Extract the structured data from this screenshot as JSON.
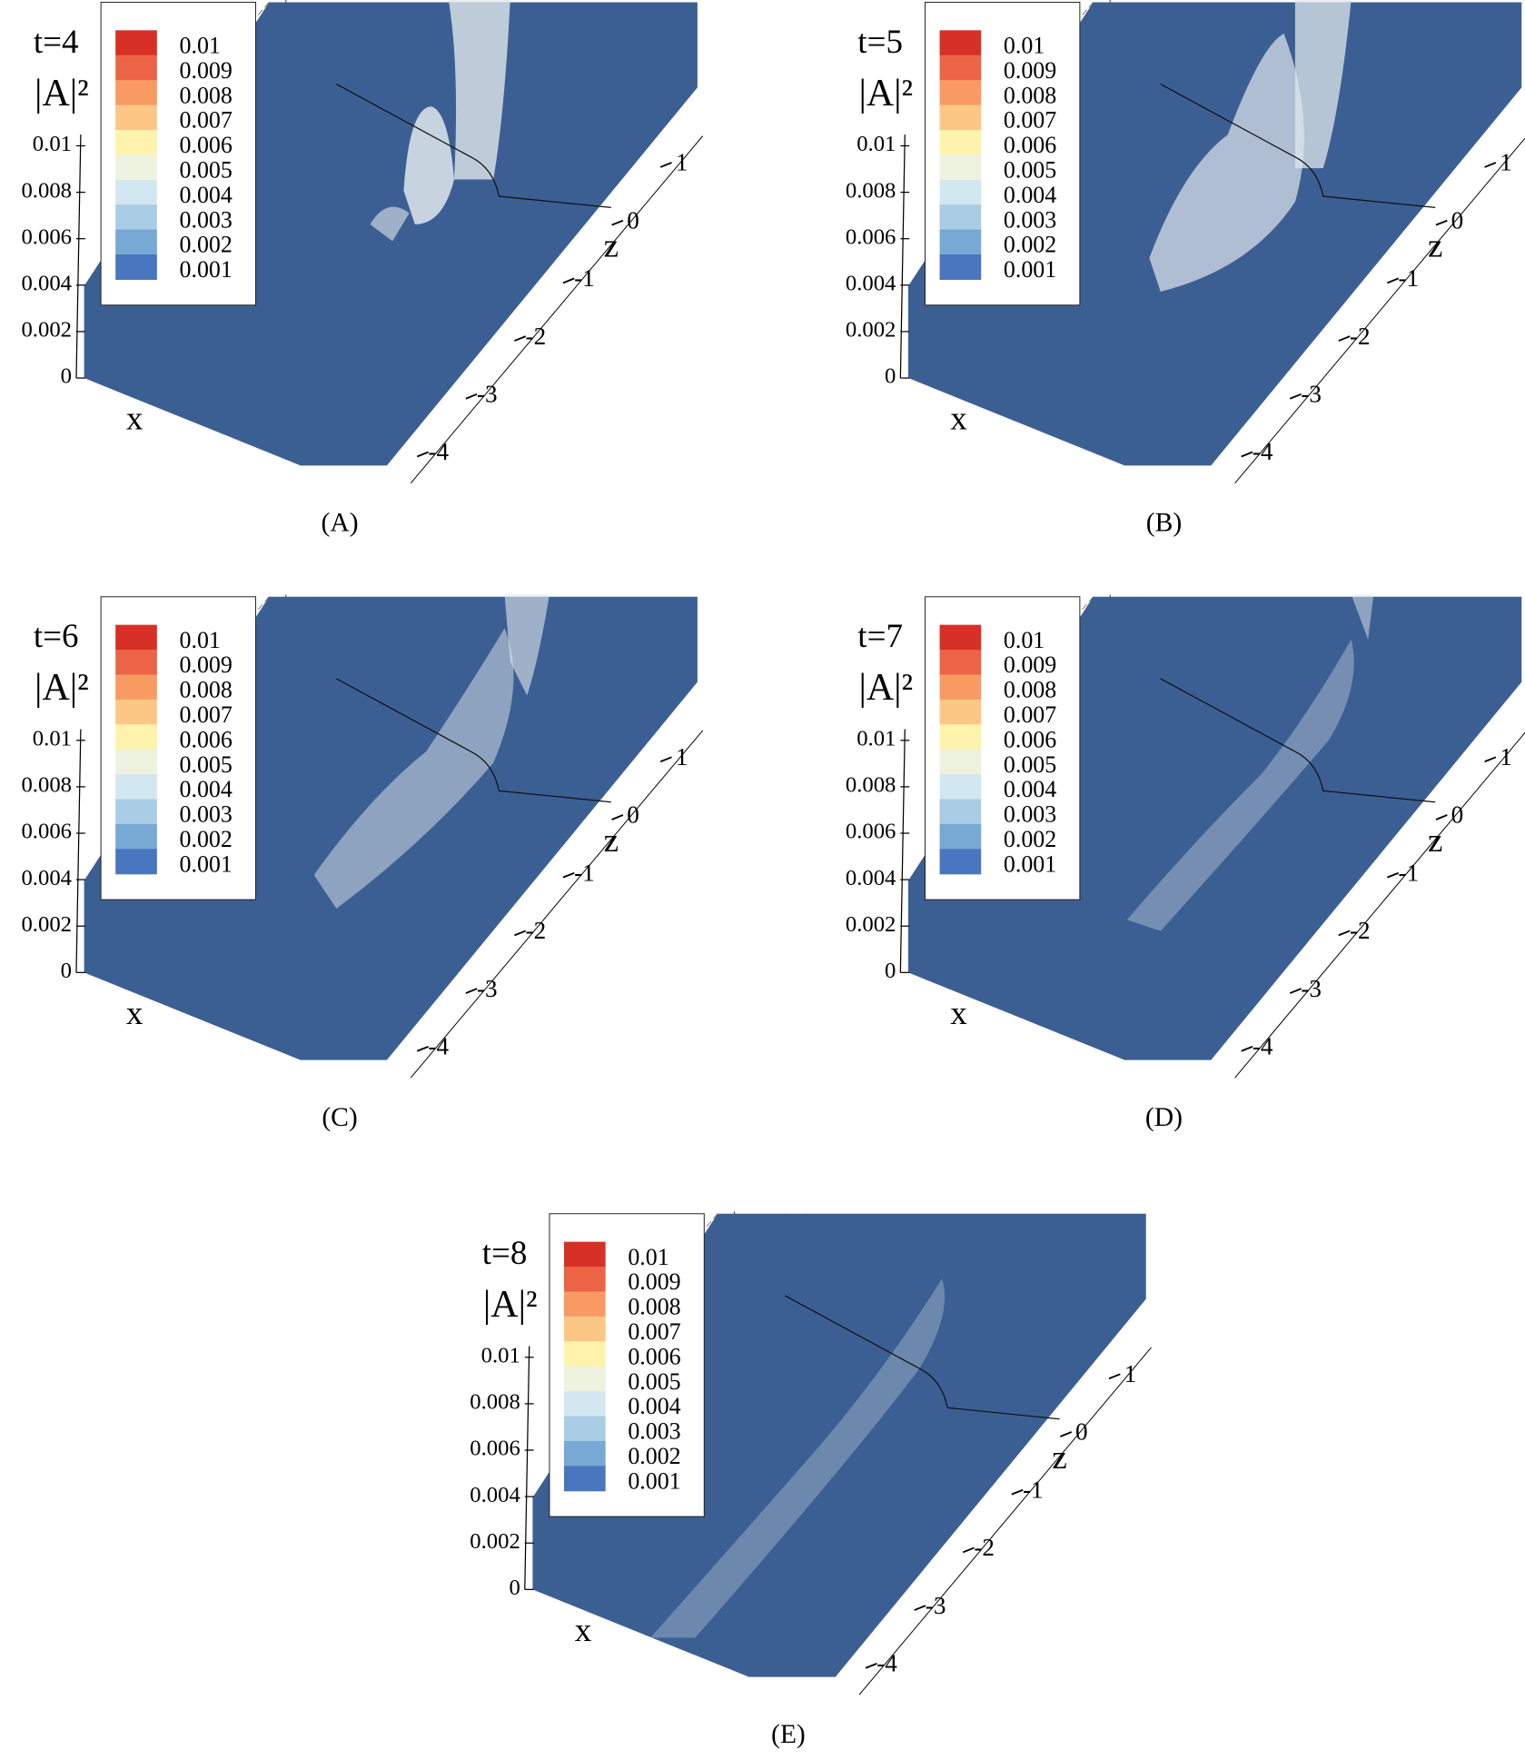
{
  "chart_data": [
    {
      "type": "surface",
      "title": "t=4",
      "zlabel": "|A|²",
      "xlabel": "x",
      "ylabel": "z",
      "caption": "(A)",
      "levels": [
        0.01,
        0.009,
        0.008,
        0.007,
        0.006,
        0.005,
        0.004,
        0.003,
        0.002,
        0.001
      ],
      "colors": [
        "#d73027",
        "#ec6446",
        "#f89a62",
        "#fcc784",
        "#fff3ad",
        "#eef3df",
        "#d3e7f1",
        "#a9cde4",
        "#78a9d4",
        "#4a76bf"
      ],
      "zlim": [
        0,
        0.01
      ],
      "zticks": [
        0,
        0.002,
        0.004,
        0.006,
        0.008,
        0.01
      ],
      "ylim": [
        -4.5,
        1.5
      ],
      "yticks": [
        1,
        0,
        -1,
        -2,
        -3,
        -4
      ],
      "surface_color": "#3c5f93"
    },
    {
      "type": "surface",
      "title": "t=5",
      "zlabel": "|A|²",
      "xlabel": "x",
      "ylabel": "z",
      "caption": "(B)",
      "levels": [
        0.01,
        0.009,
        0.008,
        0.007,
        0.006,
        0.005,
        0.004,
        0.003,
        0.002,
        0.001
      ],
      "colors": [
        "#d73027",
        "#ec6446",
        "#f89a62",
        "#fcc784",
        "#fff3ad",
        "#eef3df",
        "#d3e7f1",
        "#a9cde4",
        "#78a9d4",
        "#4a76bf"
      ],
      "zlim": [
        0,
        0.01
      ],
      "zticks": [
        0,
        0.002,
        0.004,
        0.006,
        0.008,
        0.01
      ],
      "ylim": [
        -4.5,
        1.5
      ],
      "yticks": [
        1,
        0,
        -1,
        -2,
        -3,
        -4
      ],
      "surface_color": "#3c5f93"
    },
    {
      "type": "surface",
      "title": "t=6",
      "zlabel": "|A|²",
      "xlabel": "x",
      "ylabel": "z",
      "caption": "(C)",
      "levels": [
        0.01,
        0.009,
        0.008,
        0.007,
        0.006,
        0.005,
        0.004,
        0.003,
        0.002,
        0.001
      ],
      "colors": [
        "#d73027",
        "#ec6446",
        "#f89a62",
        "#fcc784",
        "#fff3ad",
        "#eef3df",
        "#d3e7f1",
        "#a9cde4",
        "#78a9d4",
        "#4a76bf"
      ],
      "zlim": [
        0,
        0.01
      ],
      "zticks": [
        0,
        0.002,
        0.004,
        0.006,
        0.008,
        0.01
      ],
      "ylim": [
        -4.5,
        1.5
      ],
      "yticks": [
        1,
        0,
        -1,
        -2,
        -3,
        -4
      ],
      "surface_color": "#3c5f93"
    },
    {
      "type": "surface",
      "title": "t=7",
      "zlabel": "|A|²",
      "xlabel": "x",
      "ylabel": "z",
      "caption": "(D)",
      "levels": [
        0.01,
        0.009,
        0.008,
        0.007,
        0.006,
        0.005,
        0.004,
        0.003,
        0.002,
        0.001
      ],
      "colors": [
        "#d73027",
        "#ec6446",
        "#f89a62",
        "#fcc784",
        "#fff3ad",
        "#eef3df",
        "#d3e7f1",
        "#a9cde4",
        "#78a9d4",
        "#4a76bf"
      ],
      "zlim": [
        0,
        0.01
      ],
      "zticks": [
        0,
        0.002,
        0.004,
        0.006,
        0.008,
        0.01
      ],
      "ylim": [
        -4.5,
        1.5
      ],
      "yticks": [
        1,
        0,
        -1,
        -2,
        -3,
        -4
      ],
      "surface_color": "#3c5f93"
    },
    {
      "type": "surface",
      "title": "t=8",
      "zlabel": "|A|²",
      "xlabel": "x",
      "ylabel": "z",
      "caption": "(E)",
      "levels": [
        0.01,
        0.009,
        0.008,
        0.007,
        0.006,
        0.005,
        0.004,
        0.003,
        0.002,
        0.001
      ],
      "colors": [
        "#d73027",
        "#ec6446",
        "#f89a62",
        "#fcc784",
        "#fff3ad",
        "#eef3df",
        "#d3e7f1",
        "#a9cde4",
        "#78a9d4",
        "#4a76bf"
      ],
      "zlim": [
        0,
        0.01
      ],
      "zticks": [
        0,
        0.002,
        0.004,
        0.006,
        0.008,
        0.01
      ],
      "ylim": [
        -4.5,
        1.5
      ],
      "yticks": [
        1,
        0,
        -1,
        -2,
        -3,
        -4
      ],
      "surface_color": "#3c5f93"
    }
  ]
}
